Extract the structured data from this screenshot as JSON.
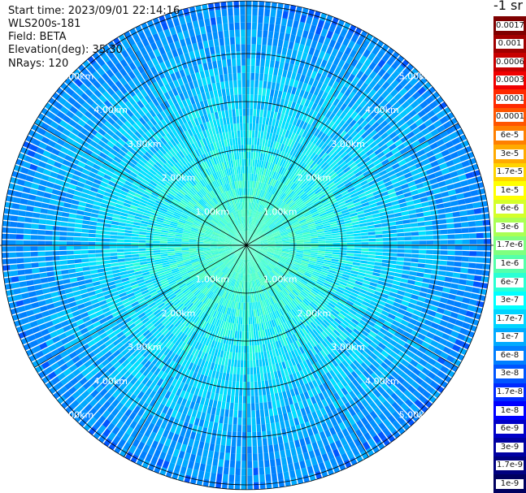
{
  "info": {
    "start_time": "Start time: 2023/09/01 22:14:16",
    "site": "WLS200s-181",
    "field": "Field: BETA",
    "elevation": "Elevation(deg): 35.30",
    "nrays": "NRays: 120"
  },
  "chart_data": {
    "type": "heatmap",
    "projection": "polar-ppi",
    "field": "BETA",
    "elevation_deg": 35.3,
    "n_rays": 120,
    "range_rings_km": [
      1,
      2,
      3,
      4,
      5
    ],
    "ring_labels": [
      "1.00km",
      "2.00km",
      "3.00km",
      "4.00km",
      "5.00km"
    ],
    "max_range_km": 5.1,
    "spokes_deg": [
      0,
      30,
      60,
      90,
      120,
      150
    ],
    "grid": true,
    "colorbar": {
      "position": "right",
      "unit_label": "-1 sr",
      "levels": [
        {
          "label": "0.0017",
          "color": "#7f0000"
        },
        {
          "label": "0.001",
          "color": "#a10000"
        },
        {
          "label": "0.0006",
          "color": "#c80000"
        },
        {
          "label": "0.0003",
          "color": "#f00000"
        },
        {
          "label": "0.00017",
          "color": "#ff2a00"
        },
        {
          "label": "0.0001",
          "color": "#ff5500"
        },
        {
          "label": "6e-5",
          "color": "#ff7f00"
        },
        {
          "label": "3e-5",
          "color": "#ffaa00"
        },
        {
          "label": "1.7e-5",
          "color": "#ffd400"
        },
        {
          "label": "1e-5",
          "color": "#ffff00"
        },
        {
          "label": "6e-6",
          "color": "#d4ff2a"
        },
        {
          "label": "3e-6",
          "color": "#aaff55"
        },
        {
          "label": "1.7e-6",
          "color": "#7fff7f"
        },
        {
          "label": "1e-6",
          "color": "#55ffaa"
        },
        {
          "label": "6e-7",
          "color": "#2affd4"
        },
        {
          "label": "3e-7",
          "color": "#00ffff"
        },
        {
          "label": "1.7e-7",
          "color": "#00d4ff"
        },
        {
          "label": "1e-7",
          "color": "#00aaff"
        },
        {
          "label": "6e-8",
          "color": "#007fff"
        },
        {
          "label": "3e-8",
          "color": "#0055ff"
        },
        {
          "label": "1.7e-8",
          "color": "#002aff"
        },
        {
          "label": "1e-8",
          "color": "#0000ff"
        },
        {
          "label": "6e-9",
          "color": "#0000c8"
        },
        {
          "label": "3e-9",
          "color": "#0000a1"
        },
        {
          "label": "1.7e-9",
          "color": "#00007f"
        },
        {
          "label": "1e-9",
          "color": "#000060"
        }
      ]
    }
  }
}
